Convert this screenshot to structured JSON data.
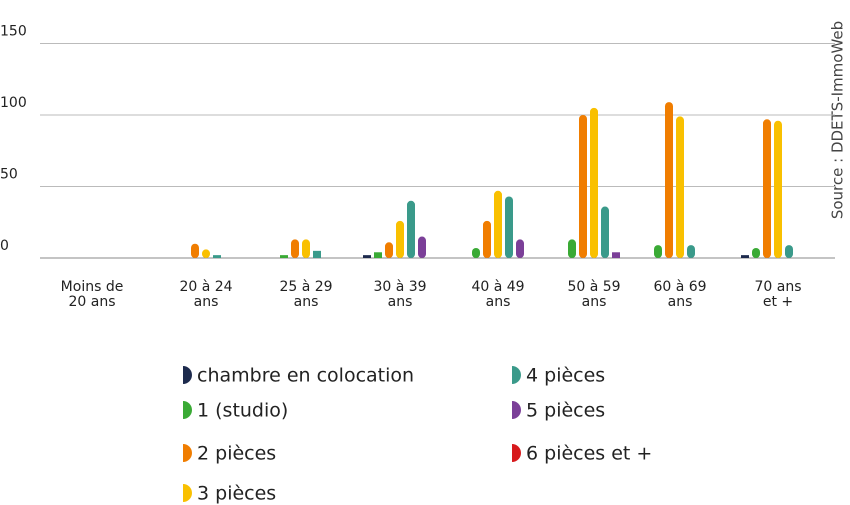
{
  "chart_data": {
    "type": "bar",
    "source": "Source : DDETS-ImmoWeb",
    "categories": [
      "Moins de\n20 ans",
      "20 à 24\nans",
      "25 à 29\nans",
      "30 à 39\nans",
      "40 à 49\nans",
      "50 à 59\nans",
      "60 à 69\nans",
      "70 ans\net +"
    ],
    "series": [
      {
        "name": "chambre en colocation",
        "color": "#1d2a4d",
        "values": [
          0,
          0,
          0,
          2,
          0,
          0,
          0,
          2
        ]
      },
      {
        "name": "1 (studio)",
        "color": "#3aaa35",
        "values": [
          0,
          0,
          2,
          4,
          7,
          13,
          9,
          7
        ]
      },
      {
        "name": "2 pièces",
        "color": "#f07d00",
        "values": [
          0,
          10,
          13,
          11,
          26,
          100,
          109,
          97
        ]
      },
      {
        "name": "3 pièces",
        "color": "#f9c000",
        "values": [
          0,
          6,
          13,
          26,
          47,
          105,
          99,
          96
        ]
      },
      {
        "name": "4 pièces",
        "color": "#3a9a8a",
        "values": [
          0,
          2,
          5,
          40,
          43,
          36,
          9,
          9
        ]
      },
      {
        "name": "5 pièces",
        "color": "#7b3f98",
        "values": [
          0,
          0,
          0,
          15,
          13,
          4,
          0,
          0
        ]
      },
      {
        "name": "6 pièces et +",
        "color": "#d7191c",
        "values": [
          0,
          0,
          0,
          0,
          0,
          0,
          0,
          0
        ]
      }
    ],
    "ylim": [
      0,
      160
    ],
    "yticks": [
      0,
      50,
      100,
      150
    ],
    "grid": true
  }
}
